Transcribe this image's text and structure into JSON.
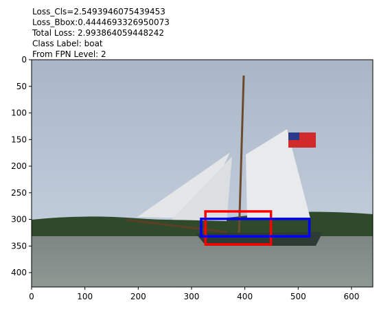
{
  "chart_data": {
    "type": "image",
    "title_lines": [
      "Loss_Cls=2.5493946075439453",
      "Loss_Bbox:0.4444693326950073",
      "Total Loss: 2.993864059448242",
      "Class Label: boat",
      "From FPN Level: 2"
    ],
    "xlim": [
      0,
      640
    ],
    "ylim": [
      427,
      0
    ],
    "xticks": [
      0,
      100,
      200,
      300,
      400,
      500,
      600
    ],
    "yticks": [
      0,
      50,
      100,
      150,
      200,
      250,
      300,
      350,
      400
    ],
    "boxes": [
      {
        "color": "#ff0000",
        "x": [
          326,
          449
        ],
        "y": [
          285,
          347
        ]
      },
      {
        "color": "#0000ff",
        "x": [
          318,
          521
        ],
        "y": [
          299,
          332
        ]
      }
    ]
  }
}
